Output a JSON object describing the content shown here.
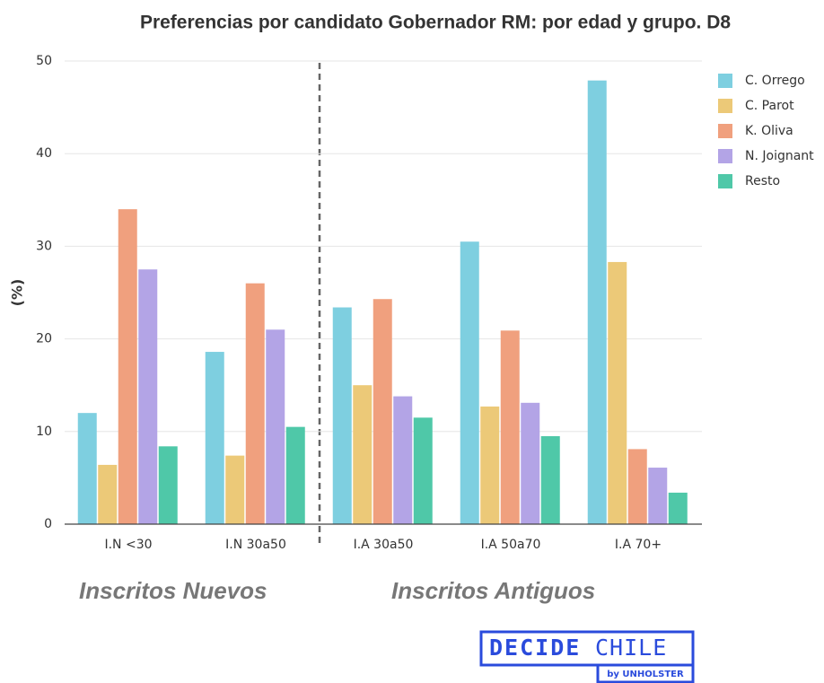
{
  "chart_data": {
    "type": "bar",
    "title": "Preferencias por candidato Gobernador RM: por edad y grupo. D8",
    "y_label": "(%)",
    "categories": [
      "I.N <30",
      "I.N 30a50",
      "I.A 30a50",
      "I.A 50a70",
      "I.A 70+"
    ],
    "series": [
      {
        "name": "C. Orrego",
        "color": "#7ecfe0",
        "values": [
          12.0,
          18.6,
          23.4,
          30.5,
          47.9
        ]
      },
      {
        "name": "C. Parot",
        "color": "#ecc978",
        "values": [
          6.4,
          7.4,
          15.0,
          12.7,
          28.3
        ]
      },
      {
        "name": "K. Oliva",
        "color": "#f0a07e",
        "values": [
          34.0,
          26.0,
          24.3,
          20.9,
          8.1
        ]
      },
      {
        "name": "N. Joignant",
        "color": "#b3a4e6",
        "values": [
          27.5,
          21.0,
          13.8,
          13.1,
          6.1
        ]
      },
      {
        "name": "Resto",
        "color": "#4fc8a8",
        "values": [
          8.4,
          10.5,
          11.5,
          9.5,
          3.4
        ]
      }
    ],
    "ylim": [
      0,
      50
    ],
    "yticks": [
      0,
      10,
      20,
      30,
      40,
      50
    ],
    "grid": true,
    "legend": "right",
    "annotations": [
      "Inscritos Nuevos",
      "Inscritos Antiguos"
    ]
  },
  "logo": {
    "bold": "DECIDE",
    "light": "CHILE",
    "sub": "by UNHOLSTER"
  }
}
